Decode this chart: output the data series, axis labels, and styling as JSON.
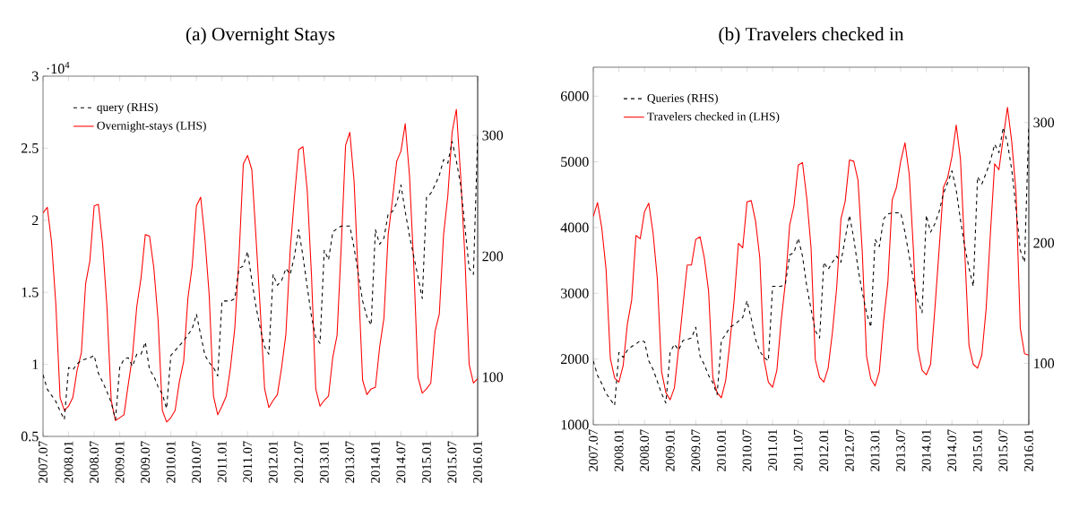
{
  "chart_data": [
    {
      "type": "line",
      "title": "(a) Overnight Stays",
      "annotations": [
        "·10$^{4}$"
      ],
      "legend": "top left",
      "x": [
        "2007-07",
        "2007-08",
        "2007-09",
        "2007-10",
        "2007-11",
        "2007-12",
        "2008-01",
        "2008-02",
        "2008-03",
        "2008-04",
        "2008-05",
        "2008-06",
        "2008-07",
        "2008-08",
        "2008-09",
        "2008-10",
        "2008-11",
        "2008-12",
        "2009-01",
        "2009-02",
        "2009-03",
        "2009-04",
        "2009-05",
        "2009-06",
        "2009-07",
        "2009-08",
        "2009-09",
        "2009-10",
        "2009-11",
        "2009-12",
        "2010-01",
        "2010-02",
        "2010-03",
        "2010-04",
        "2010-05",
        "2010-06",
        "2010-07",
        "2010-08",
        "2010-09",
        "2010-10",
        "2010-11",
        "2010-12",
        "2011-01",
        "2011-02",
        "2011-03",
        "2011-04",
        "2011-05",
        "2011-06",
        "2011-07",
        "2011-08",
        "2011-09",
        "2011-10",
        "2011-11",
        "2011-12",
        "2012-01",
        "2012-02",
        "2012-03",
        "2012-04",
        "2012-05",
        "2012-06",
        "2012-07",
        "2012-08",
        "2012-09",
        "2012-10",
        "2012-11",
        "2012-12",
        "2013-01",
        "2013-02",
        "2013-03",
        "2013-04",
        "2013-05",
        "2013-06",
        "2013-07",
        "2013-08",
        "2013-09",
        "2013-10",
        "2013-11",
        "2013-12",
        "2014-01",
        "2014-02",
        "2014-03",
        "2014-04",
        "2014-05",
        "2014-06",
        "2014-07",
        "2014-08",
        "2014-09",
        "2014-10",
        "2014-11",
        "2014-12",
        "2015-01",
        "2015-02",
        "2015-03",
        "2015-04",
        "2015-05",
        "2015-06",
        "2015-07",
        "2015-08",
        "2015-09",
        "2015-10",
        "2015-11",
        "2015-12",
        "2016-01"
      ],
      "xlim": [
        "2007-07",
        "2016-01"
      ],
      "xticks": [
        {
          "value": "2007-07",
          "label": "2007.07"
        },
        {
          "value": "2008-01",
          "label": "2008.01"
        },
        {
          "value": "2008-07",
          "label": "2008.07"
        },
        {
          "value": "2009-01",
          "label": "2009.01"
        },
        {
          "value": "2009-07",
          "label": "2009.07"
        },
        {
          "value": "2010-01",
          "label": "2010.01"
        },
        {
          "value": "2010-07",
          "label": "2010.07"
        },
        {
          "value": "2011-01",
          "label": "2011.01"
        },
        {
          "value": "2011-07",
          "label": "2011.07"
        },
        {
          "value": "2012-01",
          "label": "2012.01"
        },
        {
          "value": "2012-07",
          "label": "2012.07"
        },
        {
          "value": "2013-01",
          "label": "2013.01"
        },
        {
          "value": "2013-07",
          "label": "2013.07"
        },
        {
          "value": "2014-01",
          "label": "2014.01"
        },
        {
          "value": "2014-07",
          "label": "2014.07"
        },
        {
          "value": "2015-01",
          "label": "2015.01"
        },
        {
          "value": "2015-07",
          "label": "2015.07"
        },
        {
          "value": "2016-01",
          "label": "2016.01"
        }
      ],
      "ylim": [
        0.5,
        3
      ],
      "yticks": [
        0.5,
        1,
        1.5,
        2,
        2.5,
        3
      ],
      "y2lim": [
        51,
        349
      ],
      "y2ticks": [
        100,
        200,
        300
      ],
      "series": [
        {
          "name": "query (RHS)",
          "color": "#000000",
          "axis": "y2",
          "line_style": "dashed",
          "values": [
            102,
            90,
            85,
            80,
            72,
            65,
            108,
            106,
            111,
            114,
            115,
            116,
            118,
            103,
            96,
            88,
            79,
            65,
            108,
            115,
            116,
            109,
            119,
            119,
            129,
            106,
            101,
            92,
            86,
            74,
            118,
            122,
            126,
            130,
            135,
            140,
            152,
            135,
            118,
            112,
            108,
            101,
            163,
            163,
            163,
            165,
            190,
            192,
            204,
            180,
            158,
            140,
            125,
            119,
            185,
            176,
            180,
            190,
            185,
            200,
            222,
            200,
            175,
            150,
            133,
            128,
            205,
            197,
            220,
            223,
            225,
            225,
            225,
            207,
            185,
            163,
            150,
            143,
            222,
            210,
            215,
            235,
            237,
            244,
            259,
            237,
            217,
            200,
            183,
            165,
            249,
            252,
            259,
            267,
            280,
            277,
            295,
            279,
            259,
            225,
            190,
            185,
            299
          ]
        },
        {
          "name": "Overnight-stays (LHS)",
          "color": "#ff0000",
          "line_style": "solid",
          "values": [
            2.05,
            2.09,
            1.85,
            1.42,
            0.77,
            0.68,
            0.71,
            0.77,
            0.96,
            1.08,
            1.56,
            1.72,
            2.1,
            2.11,
            1.83,
            1.4,
            0.75,
            0.61,
            0.63,
            0.65,
            0.86,
            1.06,
            1.4,
            1.6,
            1.9,
            1.89,
            1.67,
            1.31,
            0.68,
            0.6,
            0.63,
            0.68,
            0.88,
            1.02,
            1.46,
            1.68,
            2.1,
            2.16,
            1.87,
            1.48,
            0.78,
            0.65,
            0.71,
            0.78,
            0.98,
            1.25,
            1.75,
            2.39,
            2.45,
            2.35,
            1.87,
            1.37,
            0.83,
            0.7,
            0.75,
            0.79,
            0.98,
            1.21,
            1.79,
            2.16,
            2.49,
            2.51,
            2.21,
            1.62,
            0.83,
            0.71,
            0.75,
            0.78,
            1.05,
            1.2,
            1.83,
            2.52,
            2.61,
            2.27,
            1.58,
            0.89,
            0.79,
            0.83,
            0.84,
            1.12,
            1.32,
            1.9,
            2.14,
            2.41,
            2.48,
            2.67,
            2.31,
            1.69,
            0.91,
            0.8,
            0.83,
            0.87,
            1.23,
            1.35,
            1.9,
            2.17,
            2.61,
            2.77,
            2.31,
            1.75,
            1.0,
            0.87,
            0.9
          ]
        }
      ]
    },
    {
      "type": "line",
      "title": "(b) Travelers checked in",
      "legend": "top left",
      "x": [
        "2007-07",
        "2007-08",
        "2007-09",
        "2007-10",
        "2007-11",
        "2007-12",
        "2008-01",
        "2008-02",
        "2008-03",
        "2008-04",
        "2008-05",
        "2008-06",
        "2008-07",
        "2008-08",
        "2008-09",
        "2008-10",
        "2008-11",
        "2008-12",
        "2009-01",
        "2009-02",
        "2009-03",
        "2009-04",
        "2009-05",
        "2009-06",
        "2009-07",
        "2009-08",
        "2009-09",
        "2009-10",
        "2009-11",
        "2009-12",
        "2010-01",
        "2010-02",
        "2010-03",
        "2010-04",
        "2010-05",
        "2010-06",
        "2010-07",
        "2010-08",
        "2010-09",
        "2010-10",
        "2010-11",
        "2010-12",
        "2011-01",
        "2011-02",
        "2011-03",
        "2011-04",
        "2011-05",
        "2011-06",
        "2011-07",
        "2011-08",
        "2011-09",
        "2011-10",
        "2011-11",
        "2011-12",
        "2012-01",
        "2012-02",
        "2012-03",
        "2012-04",
        "2012-05",
        "2012-06",
        "2012-07",
        "2012-08",
        "2012-09",
        "2012-10",
        "2012-11",
        "2012-12",
        "2013-01",
        "2013-02",
        "2013-03",
        "2013-04",
        "2013-05",
        "2013-06",
        "2013-07",
        "2013-08",
        "2013-09",
        "2013-10",
        "2013-11",
        "2013-12",
        "2014-01",
        "2014-02",
        "2014-03",
        "2014-04",
        "2014-05",
        "2014-06",
        "2014-07",
        "2014-08",
        "2014-09",
        "2014-10",
        "2014-11",
        "2014-12",
        "2015-01",
        "2015-02",
        "2015-03",
        "2015-04",
        "2015-05",
        "2015-06",
        "2015-07",
        "2015-08",
        "2015-09",
        "2015-10",
        "2015-11",
        "2015-12",
        "2016-01"
      ],
      "xlim": [
        "2007-07",
        "2016-01"
      ],
      "xticks": [
        {
          "value": "2007-07",
          "label": "2007.07"
        },
        {
          "value": "2008-01",
          "label": "2008.01"
        },
        {
          "value": "2008-07",
          "label": "2008.07"
        },
        {
          "value": "2009-01",
          "label": "2009.01"
        },
        {
          "value": "2009-07",
          "label": "2009.07"
        },
        {
          "value": "2010-01",
          "label": "2010.01"
        },
        {
          "value": "2010-07",
          "label": "2010.07"
        },
        {
          "value": "2011-01",
          "label": "2011.01"
        },
        {
          "value": "2011-07",
          "label": "2011.07"
        },
        {
          "value": "2012-01",
          "label": "2012.01"
        },
        {
          "value": "2012-07",
          "label": "2012.07"
        },
        {
          "value": "2013-01",
          "label": "2013.01"
        },
        {
          "value": "2013-07",
          "label": "2013.07"
        },
        {
          "value": "2014-01",
          "label": "2014.01"
        },
        {
          "value": "2014-07",
          "label": "2014.07"
        },
        {
          "value": "2015-01",
          "label": "2015.01"
        },
        {
          "value": "2015-07",
          "label": "2015.07"
        },
        {
          "value": "2016-01",
          "label": "2016.01"
        }
      ],
      "ylim": [
        1000,
        6440
      ],
      "yticks": [
        1000,
        2000,
        3000,
        4000,
        5000,
        6000
      ],
      "y2lim": [
        49,
        346
      ],
      "y2ticks": [
        100,
        200,
        300
      ],
      "series": [
        {
          "name": "Queries (RHS)",
          "color": "#000000",
          "axis": "y2",
          "line_style": "dashed",
          "values": [
            102,
            90,
            83,
            75,
            70,
            65,
            109,
            105,
            111,
            114,
            116,
            119,
            118,
            102,
            95,
            85,
            75,
            67,
            109,
            116,
            111,
            119,
            120,
            121,
            130,
            106,
            99,
            90,
            84,
            74,
            119,
            124,
            130,
            132,
            135,
            138,
            152,
            137,
            120,
            110,
            105,
            102,
            164,
            164,
            164,
            166,
            190,
            192,
            204,
            189,
            164,
            145,
            127,
            121,
            184,
            178,
            184,
            189,
            184,
            204,
            223,
            204,
            179,
            159,
            142,
            130,
            203,
            197,
            220,
            224,
            225,
            225,
            225,
            209,
            189,
            169,
            152,
            142,
            223,
            209,
            216,
            226,
            241,
            250,
            260,
            244,
            219,
            197,
            179,
            164,
            255,
            249,
            258,
            268,
            282,
            275,
            296,
            283,
            261,
            229,
            194,
            184,
            298
          ]
        },
        {
          "name": "Travelers checked in (LHS)",
          "color": "#ff0000",
          "line_style": "solid",
          "values": [
            4170,
            4380,
            3990,
            3360,
            2010,
            1710,
            1650,
            1900,
            2540,
            2900,
            3880,
            3830,
            4240,
            4370,
            3920,
            3220,
            1810,
            1490,
            1380,
            1560,
            2170,
            2810,
            3430,
            3430,
            3820,
            3860,
            3540,
            3040,
            1720,
            1490,
            1410,
            1670,
            2260,
            2900,
            3760,
            3690,
            4390,
            4410,
            4100,
            3540,
            1990,
            1650,
            1570,
            1830,
            2580,
            3170,
            4040,
            4330,
            4950,
            4990,
            4450,
            3700,
            1990,
            1720,
            1650,
            1860,
            2400,
            3080,
            4130,
            4400,
            5030,
            5010,
            4720,
            3630,
            2040,
            1700,
            1590,
            1810,
            2580,
            3170,
            4420,
            4610,
            5010,
            5290,
            4810,
            3630,
            2150,
            1830,
            1760,
            1920,
            2760,
            3670,
            4610,
            4760,
            5080,
            5560,
            5040,
            3630,
            2200,
            1920,
            1860,
            2060,
            2760,
            3900,
            4970,
            4880,
            5360,
            5830,
            5310,
            4540,
            2470,
            2080,
            2060
          ]
        }
      ]
    }
  ]
}
